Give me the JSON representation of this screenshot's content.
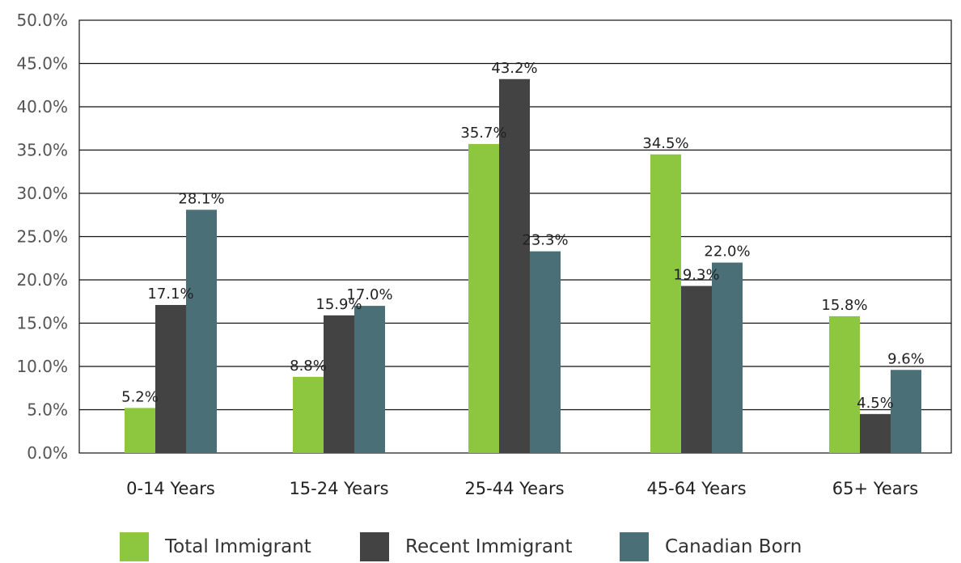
{
  "chart_data": {
    "type": "bar",
    "categories": [
      "0-14 Years",
      "15-24 Years",
      "25-44 Years",
      "45-64 Years",
      "65+ Years"
    ],
    "series": [
      {
        "name": "Total Immigrant",
        "color": "#8dc63f",
        "values": [
          5.2,
          8.8,
          35.7,
          34.5,
          15.8
        ],
        "labels": [
          "5.2%",
          "8.8%",
          "35.7%",
          "34.5%",
          "15.8%"
        ]
      },
      {
        "name": "Recent Immigrant",
        "color": "#434343",
        "values": [
          17.1,
          15.9,
          43.2,
          19.3,
          4.5
        ],
        "labels": [
          "17.1%",
          "15.9%",
          "43.2%",
          "19.3%",
          "4.5%"
        ]
      },
      {
        "name": "Canadian Born",
        "color": "#4a6f77",
        "values": [
          28.1,
          17.0,
          23.3,
          22.0,
          9.6
        ],
        "labels": [
          "28.1%",
          "17.0%",
          "23.3%",
          "22.0%",
          "9.6%"
        ]
      }
    ],
    "y_ticks": [
      "0.0%",
      "5.0%",
      "10.0%",
      "15.0%",
      "20.0%",
      "25.0%",
      "30.0%",
      "35.0%",
      "40.0%",
      "45.0%",
      "50.0%"
    ],
    "ylim": [
      0,
      50
    ],
    "grid": true,
    "legend_position": "bottom"
  }
}
